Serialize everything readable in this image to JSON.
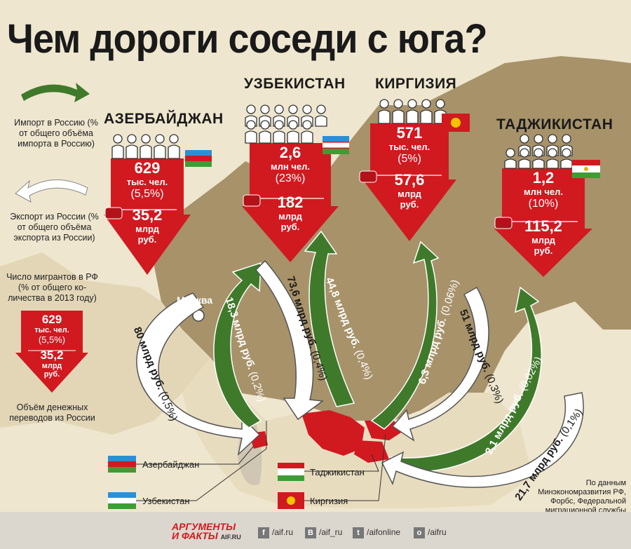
{
  "title": "Чем дороги соседи с юга?",
  "legend": {
    "import_text": "Импорт в Россию (% от общего объёма импорта в Россию)",
    "export_text": "Экспорт из России (% от общего объёма экспорта из России)",
    "migrants_text": "Число мигрантов в РФ (% от общего ко-личества в 2013 году)",
    "box_count": "629",
    "box_unit": "тыс. чел.",
    "box_pct": "(5,5%)",
    "box_money": "35,2",
    "box_money_unit1": "млрд",
    "box_money_unit2": "руб.",
    "transfers_text": "Объём денежных переводов из России"
  },
  "countries": [
    {
      "name": "АЗЕРБАЙДЖАН",
      "count": "629",
      "unit": "тыс. чел.",
      "pct": "(5,5%)",
      "money": "35,2",
      "money_u1": "млрд",
      "money_u2": "руб."
    },
    {
      "name": "УЗБЕКИСТАН",
      "count": "2,6",
      "unit": "млн чел.",
      "pct": "(23%)",
      "money": "182",
      "money_u1": "млрд",
      "money_u2": "руб."
    },
    {
      "name": "КИРГИЗИЯ",
      "count": "571",
      "unit": "тыс. чел.",
      "pct": "(5%)",
      "money": "57,6",
      "money_u1": "млрд",
      "money_u2": "руб."
    },
    {
      "name": "ТАДЖИКИСТАН",
      "count": "1,2",
      "unit": "млн чел.",
      "pct": "(10%)",
      "money": "115,2",
      "money_u1": "млрд",
      "money_u2": "руб."
    }
  ],
  "flows": {
    "az_export": "80 млрд руб.",
    "az_export_pct": "(0,5%)",
    "az_import": "18,3 млрд руб.",
    "az_import_pct": "(0,2%)",
    "uz_export": "73,6 млрд руб.",
    "uz_export_pct": "(0,4%)",
    "uz_import": "44,8 млрд руб.",
    "uz_import_pct": "(0,4%)",
    "kg_import": "6,3 млрд руб.",
    "kg_import_pct": "(0,06%)",
    "kg_export": "51 млрд руб.",
    "kg_export_pct": "(0,3%)",
    "tj_import": "2,1 млрд руб.",
    "tj_import_pct": "(0,02%)",
    "tj_export": "21,7 млрд руб.",
    "tj_export_pct": "(0,1%)"
  },
  "map": {
    "moscow": "Москва"
  },
  "flag_legend": [
    "Азербайджан",
    "Узбекистан",
    "Таджикистан",
    "Киргизия"
  ],
  "source": "По данным Минэкономразвития РФ, Форбс, Федеральной миграционной службы",
  "footer": {
    "logo_line1": "АРГУМЕНТЫ",
    "logo_line2": "И ФАКТЫ",
    "logo_url": "AIF.RU",
    "fb": "/aif.ru",
    "vk": "/aif_ru",
    "tw": "/aifonline",
    "ok": "/aifru"
  },
  "colors": {
    "red": "#d11920",
    "green": "#3f7a2b",
    "land": "#a7926a",
    "bg": "#efe6cf"
  }
}
